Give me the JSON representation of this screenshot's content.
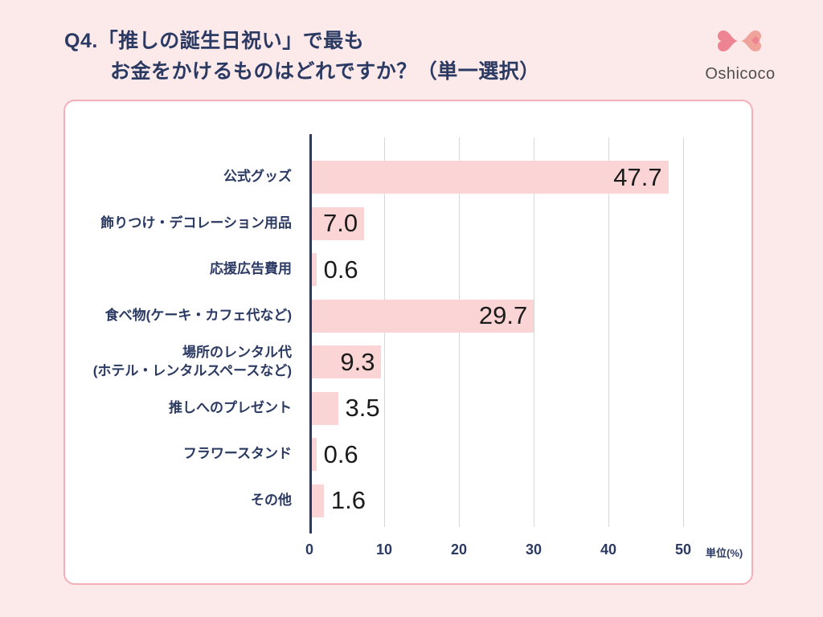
{
  "header": {
    "title_line1": "Q4.「推しの誕生日祝い」で最も",
    "title_line2": "お金をかけるものはどれですか？（単一選択）",
    "logo_text": "Oshicoco"
  },
  "chart_data": {
    "type": "bar",
    "orientation": "horizontal",
    "title": "Q4.「推しの誕生日祝い」で最もお金をかけるものはどれですか？（単一選択）",
    "categories": [
      "公式グッズ",
      "飾りつけ・デコレーション用品",
      "応援広告費用",
      "食べ物(ケーキ・カフェ代など)",
      "場所のレンタル代\n(ホテル・レンタルスペースなど)",
      "推しへのプレゼント",
      "フラワースタンド",
      "その他"
    ],
    "values": [
      47.7,
      7.0,
      0.6,
      29.7,
      9.3,
      3.5,
      0.6,
      1.6
    ],
    "value_labels": [
      "47.7",
      "7.0",
      "0.6",
      "29.7",
      "9.3",
      "3.5",
      "0.6",
      "1.6"
    ],
    "xlabel": "",
    "ylabel": "",
    "unit_label": "単位(%)",
    "xticks": [
      0,
      10,
      20,
      30,
      40,
      50
    ],
    "xlim": [
      0,
      50
    ],
    "grid": true,
    "legend": false
  },
  "colors": {
    "background": "#fce9e9",
    "card_background": "#ffffff",
    "card_border": "#f4aeb8",
    "bar_fill": "#fbd5d5",
    "axis": "#2b3a63",
    "gridline": "#d8d8d8",
    "category_label": "#2b3a63",
    "tick_label": "#2b3a63",
    "value_label": "#1b1b1b",
    "title": "#2b3a63",
    "logo_pink": "#ee8391",
    "logo_pink_light": "#f0a39a",
    "logo_text": "#4f4f4f"
  }
}
